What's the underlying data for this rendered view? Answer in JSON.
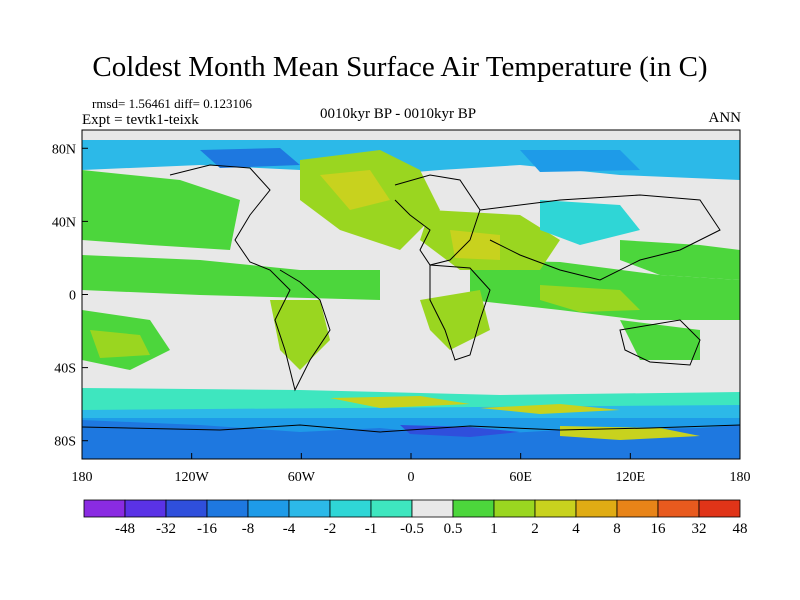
{
  "title": "Coldest Month Mean Surface Air Temperature (in C)",
  "stats_line": "rmsd= 1.56461 diff= 0.123106",
  "experiment_line": "Expt = tevtk1-teixk",
  "period_line": "0010kyr BP - 0010kyr BP",
  "season_label": "ANN",
  "map": {
    "lon_range": [
      -180,
      180
    ],
    "lat_range": [
      -90,
      90
    ],
    "x_ticks": [
      {
        "value": -180,
        "label": "180"
      },
      {
        "value": -120,
        "label": "120W"
      },
      {
        "value": -60,
        "label": "60W"
      },
      {
        "value": 0,
        "label": "0"
      },
      {
        "value": 60,
        "label": "60E"
      },
      {
        "value": 120,
        "label": "120E"
      },
      {
        "value": 180,
        "label": "180"
      }
    ],
    "y_ticks": [
      {
        "value": 80,
        "label": "80N"
      },
      {
        "value": 40,
        "label": "40N"
      },
      {
        "value": 0,
        "label": "0"
      },
      {
        "value": -40,
        "label": "40S"
      },
      {
        "value": -80,
        "label": "80S"
      }
    ]
  },
  "colorbar": {
    "labels": [
      "-48",
      "-32",
      "-16",
      "-8",
      "-4",
      "-2",
      "-1",
      "-0.5",
      "0.5",
      "1",
      "2",
      "4",
      "8",
      "16",
      "32",
      "48"
    ],
    "colors": [
      "#8a2be2",
      "#5a32e6",
      "#2f4fdc",
      "#1e78e0",
      "#1e9be8",
      "#2cb9e8",
      "#2fd6d6",
      "#3ee6bf",
      "#e8e8e8",
      "#4cd63c",
      "#9ad620",
      "#c8d21e",
      "#e0ac14",
      "#e88418",
      "#e85a1e",
      "#e03418"
    ]
  }
}
